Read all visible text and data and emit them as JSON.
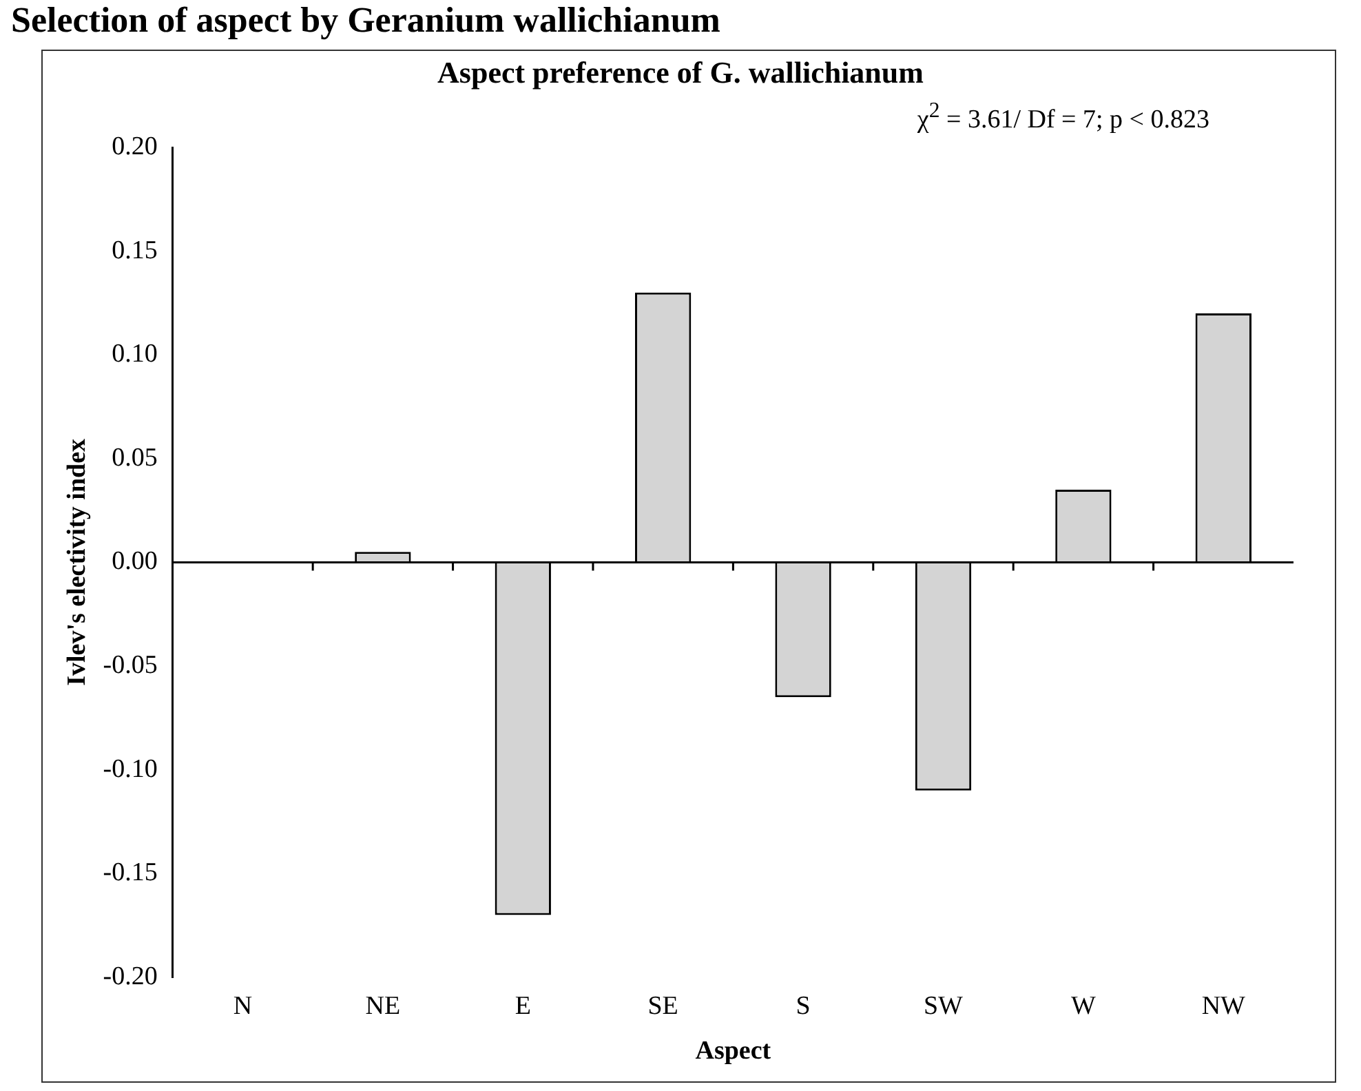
{
  "chart_data": {
    "type": "bar",
    "title": "Selection of aspect by Geranium wallichianum",
    "subtitle": "Aspect preference of G. wallichianum",
    "xlabel": "Aspect",
    "ylabel": "Ivlev's electivity index",
    "annotations": [
      "χ$^{2}$ = 3.61/ Df = 7; p < 0.823"
    ],
    "categories": [
      "N",
      "NE",
      "E",
      "SE",
      "S",
      "SW",
      "W",
      "NW"
    ],
    "values": [
      0,
      0.005,
      -0.17,
      0.13,
      -0.065,
      -0.11,
      0.035,
      0.12
    ],
    "color": "#d4d4d4",
    "ylim": [
      -0.2,
      0.2
    ],
    "yticks": [
      {
        "value": -0.2,
        "label": "-0.20"
      },
      {
        "value": -0.15,
        "label": "-0.15"
      },
      {
        "value": -0.1,
        "label": "-0.10"
      },
      {
        "value": -0.05,
        "label": "-0.05"
      },
      {
        "value": 0,
        "label": "0.00"
      },
      {
        "value": 0.05,
        "label": "0.05"
      },
      {
        "value": 0.1,
        "label": "0.10"
      },
      {
        "value": 0.15,
        "label": "0.15"
      },
      {
        "value": 0.2,
        "label": "0.20"
      }
    ],
    "legend": false
  }
}
